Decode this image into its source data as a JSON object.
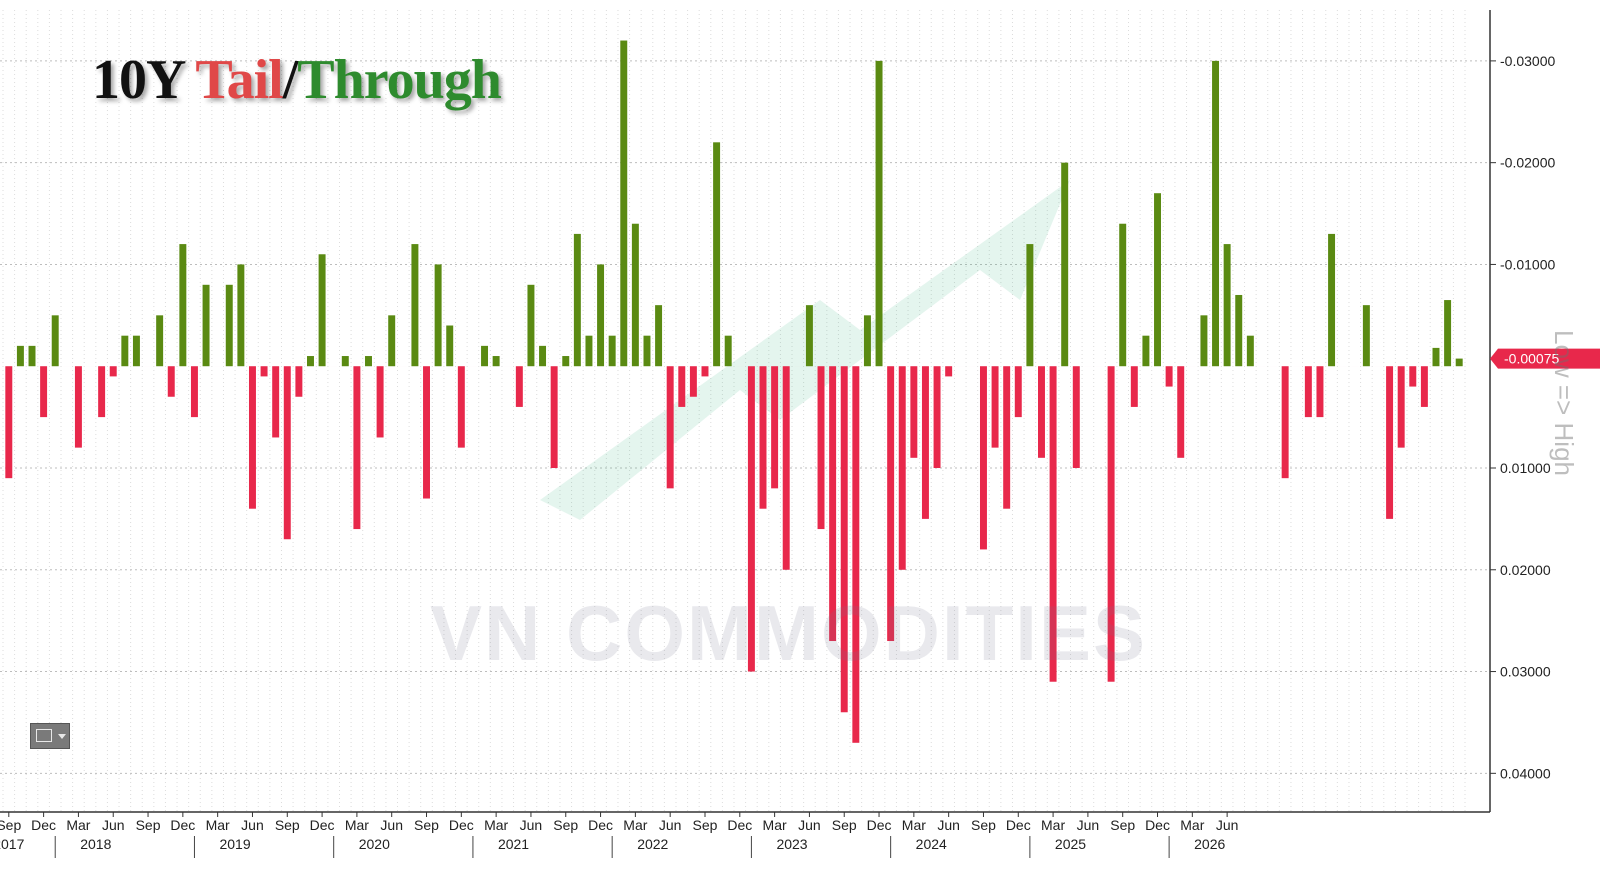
{
  "title": {
    "part1": "10Y ",
    "part2": "Tail",
    "sep": "/",
    "part3": "Through"
  },
  "watermark": "VN COMMODITIES",
  "side_label": "Low => High",
  "colors": {
    "through": "#5a8a12",
    "tail": "#e8284b",
    "axis_bg": "#ffffff",
    "grid": "#d9d9d9"
  },
  "chart_data": {
    "type": "bar",
    "y_axis_note": "inverted scale; negative values (through) plotted upward",
    "ylim": [
      -0.035,
      0.0438
    ],
    "yticks": [
      -0.03,
      -0.02,
      -0.01,
      0.01,
      0.02,
      0.03,
      0.04
    ],
    "ytick_labels": [
      "-0.03000",
      "-0.02000",
      "-0.01000",
      "0.01000",
      "0.02000",
      "0.03000",
      "0.04000"
    ],
    "last_value_label": "-0.00075",
    "x_month_labels": [
      "Sep",
      "Dec",
      "Mar",
      "Jun",
      "Sep",
      "Dec",
      "Mar",
      "Jun",
      "Sep",
      "Dec",
      "Mar",
      "Jun",
      "Sep",
      "Dec",
      "Mar",
      "Jun",
      "Sep",
      "Dec",
      "Mar",
      "Jun",
      "Sep",
      "Dec",
      "Mar",
      "Jun",
      "Sep",
      "Dec",
      "Mar",
      "Jun",
      "Sep",
      "Dec",
      "Mar",
      "Jun",
      "Sep",
      "Dec",
      "Mar",
      "Jun"
    ],
    "x_year_labels": [
      "2017",
      "2018",
      "2019",
      "2020",
      "2021",
      "2022",
      "2023",
      "2024",
      "2025",
      "2026"
    ],
    "values": [
      0.011,
      -0.002,
      -0.002,
      0.005,
      -0.005,
      0.0,
      0.008,
      0.0,
      0.005,
      0.001,
      -0.003,
      -0.003,
      0.0,
      -0.005,
      0.003,
      -0.012,
      0.005,
      -0.008,
      0.0,
      -0.008,
      -0.01,
      0.014,
      0.001,
      0.007,
      0.017,
      0.003,
      -0.001,
      -0.011,
      0.0,
      -0.001,
      0.016,
      -0.001,
      0.007,
      -0.005,
      0.0,
      -0.012,
      0.013,
      -0.01,
      -0.004,
      0.008,
      0.0,
      -0.002,
      -0.001,
      0.0,
      0.004,
      -0.008,
      -0.002,
      0.01,
      -0.001,
      -0.013,
      -0.003,
      -0.01,
      -0.003,
      -0.032,
      -0.014,
      -0.003,
      -0.006,
      0.012,
      0.004,
      0.003,
      0.001,
      -0.022,
      -0.003,
      0.0,
      0.03,
      0.014,
      0.012,
      0.02,
      0.0,
      -0.006,
      0.016,
      0.027,
      0.034,
      0.037,
      -0.005,
      -0.03,
      0.027,
      0.02,
      0.009,
      0.015,
      0.01,
      0.001,
      0.0,
      0.0,
      0.018,
      0.008,
      0.014,
      0.005,
      -0.012,
      0.009,
      0.031,
      -0.02,
      0.01,
      0.0,
      0.0,
      0.031,
      -0.014,
      0.004,
      -0.003,
      -0.017,
      0.002,
      0.009,
      0.0,
      -0.005,
      -0.03,
      -0.012,
      -0.007,
      -0.003,
      0.0,
      0.0,
      0.011,
      0.0,
      0.005,
      0.005,
      -0.013,
      0.0,
      0.0,
      -0.006,
      0.0,
      0.015,
      0.008,
      0.002,
      0.004,
      -0.0018,
      -0.0065,
      -0.00075
    ]
  }
}
